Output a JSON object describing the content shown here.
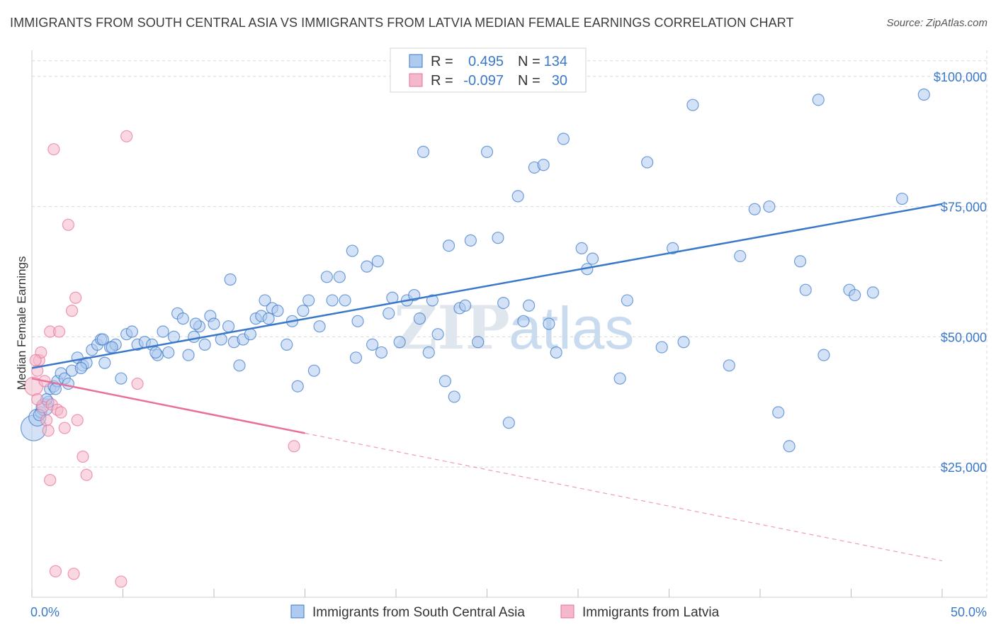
{
  "title": "IMMIGRANTS FROM SOUTH CENTRAL ASIA VS IMMIGRANTS FROM LATVIA MEDIAN FEMALE EARNINGS CORRELATION CHART",
  "source": "Source: ZipAtlas.com",
  "watermark": {
    "zip": "ZIP",
    "atlas": "atlas"
  },
  "colors": {
    "blue": "#3a78c9",
    "blue_fill": "#aecbef",
    "pink": "#e8709a",
    "pink_fill": "#f4b8cb",
    "grid": "#d8d8d8"
  },
  "legend": {
    "rows": [
      {
        "r_label": "R =",
        "r_value": "0.495",
        "n_label": "N =",
        "n_value": "134"
      },
      {
        "r_label": "R =",
        "r_value": "-0.097",
        "n_label": "N =",
        "n_value": "30"
      }
    ]
  },
  "chart_data": {
    "type": "scatter",
    "ylabel": "Median Female Earnings",
    "xlim": [
      0,
      50
    ],
    "ylim": [
      0,
      105000
    ],
    "x_tick_labels": [
      "0.0%",
      "50.0%"
    ],
    "y_ticks": [
      25000,
      50000,
      75000,
      100000
    ],
    "y_tick_labels": [
      "$25,000",
      "$50,000",
      "$75,000",
      "$100,000"
    ],
    "grid": true,
    "series": [
      {
        "name": "Immigrants from South Central Asia",
        "color": "#3a78c9",
        "trend": {
          "x": [
            0,
            50
          ],
          "y": [
            44000,
            75500
          ],
          "style": "solid"
        },
        "points": [
          [
            0.1,
            32500
          ],
          [
            0.3,
            34500
          ],
          [
            0.5,
            35500
          ],
          [
            0.7,
            36500
          ],
          [
            0.9,
            37500
          ],
          [
            1.0,
            40000
          ],
          [
            1.2,
            40500
          ],
          [
            1.4,
            41500
          ],
          [
            1.6,
            43000
          ],
          [
            1.8,
            42000
          ],
          [
            2.0,
            41000
          ],
          [
            2.2,
            43500
          ],
          [
            2.5,
            46000
          ],
          [
            2.8,
            44500
          ],
          [
            3.0,
            45000
          ],
          [
            3.3,
            47500
          ],
          [
            3.6,
            48500
          ],
          [
            3.8,
            49500
          ],
          [
            4.0,
            45000
          ],
          [
            4.3,
            48000
          ],
          [
            4.6,
            48500
          ],
          [
            4.9,
            42000
          ],
          [
            5.2,
            50500
          ],
          [
            5.5,
            51000
          ],
          [
            5.8,
            48500
          ],
          [
            6.2,
            49000
          ],
          [
            6.6,
            48500
          ],
          [
            6.9,
            46500
          ],
          [
            7.2,
            51000
          ],
          [
            7.5,
            47000
          ],
          [
            7.8,
            50000
          ],
          [
            8.0,
            54500
          ],
          [
            8.3,
            53500
          ],
          [
            8.6,
            46500
          ],
          [
            8.9,
            50000
          ],
          [
            9.2,
            52000
          ],
          [
            9.5,
            48500
          ],
          [
            9.8,
            54000
          ],
          [
            10.0,
            52500
          ],
          [
            10.4,
            49500
          ],
          [
            10.8,
            52000
          ],
          [
            10.9,
            61000
          ],
          [
            11.1,
            49000
          ],
          [
            11.4,
            44500
          ],
          [
            11.6,
            49500
          ],
          [
            12.0,
            50500
          ],
          [
            12.3,
            53500
          ],
          [
            12.6,
            54000
          ],
          [
            12.8,
            57000
          ],
          [
            13.2,
            55500
          ],
          [
            13.5,
            55000
          ],
          [
            13.0,
            53500
          ],
          [
            14.0,
            48500
          ],
          [
            14.3,
            53000
          ],
          [
            14.6,
            40500
          ],
          [
            14.9,
            55000
          ],
          [
            15.2,
            57000
          ],
          [
            15.5,
            43500
          ],
          [
            15.8,
            52000
          ],
          [
            16.2,
            61500
          ],
          [
            16.5,
            57000
          ],
          [
            16.9,
            61500
          ],
          [
            17.2,
            57000
          ],
          [
            17.6,
            66500
          ],
          [
            17.9,
            53000
          ],
          [
            17.8,
            46000
          ],
          [
            18.4,
            63500
          ],
          [
            18.7,
            48500
          ],
          [
            19.0,
            64500
          ],
          [
            19.2,
            47000
          ],
          [
            19.6,
            54500
          ],
          [
            19.8,
            57500
          ],
          [
            20.2,
            49000
          ],
          [
            20.6,
            57000
          ],
          [
            21.0,
            58000
          ],
          [
            21.3,
            53500
          ],
          [
            21.5,
            85500
          ],
          [
            21.8,
            47000
          ],
          [
            22.0,
            57000
          ],
          [
            22.3,
            50500
          ],
          [
            22.7,
            41500
          ],
          [
            22.9,
            67500
          ],
          [
            23.2,
            38500
          ],
          [
            23.5,
            55500
          ],
          [
            23.8,
            56000
          ],
          [
            24.1,
            68500
          ],
          [
            24.5,
            49000
          ],
          [
            25.0,
            85500
          ],
          [
            25.6,
            69000
          ],
          [
            25.9,
            56500
          ],
          [
            26.2,
            33500
          ],
          [
            26.7,
            77000
          ],
          [
            27.0,
            53000
          ],
          [
            27.3,
            56000
          ],
          [
            27.6,
            82500
          ],
          [
            28.1,
            83000
          ],
          [
            28.4,
            52500
          ],
          [
            28.8,
            47000
          ],
          [
            29.2,
            88000
          ],
          [
            30.2,
            67000
          ],
          [
            30.5,
            63000
          ],
          [
            30.8,
            65000
          ],
          [
            32.3,
            42000
          ],
          [
            32.7,
            57000
          ],
          [
            33.8,
            83500
          ],
          [
            34.6,
            48000
          ],
          [
            35.2,
            67000
          ],
          [
            35.8,
            49000
          ],
          [
            36.3,
            94500
          ],
          [
            38.3,
            44500
          ],
          [
            38.9,
            65500
          ],
          [
            39.7,
            74500
          ],
          [
            40.5,
            75000
          ],
          [
            41.0,
            35500
          ],
          [
            41.6,
            29000
          ],
          [
            42.2,
            64500
          ],
          [
            42.5,
            59000
          ],
          [
            43.2,
            95500
          ],
          [
            43.5,
            46500
          ],
          [
            44.9,
            59000
          ],
          [
            45.2,
            58000
          ],
          [
            46.2,
            58500
          ],
          [
            47.8,
            76500
          ],
          [
            49.0,
            96500
          ],
          [
            0.4,
            35000
          ],
          [
            0.8,
            38000
          ],
          [
            1.3,
            40000
          ],
          [
            2.7,
            44000
          ],
          [
            3.9,
            49500
          ],
          [
            4.4,
            48000
          ],
          [
            6.8,
            47000
          ],
          [
            9.0,
            52500
          ]
        ]
      },
      {
        "name": "Immigrants from Latvia",
        "color": "#e8709a",
        "trend": {
          "x": [
            0,
            15
          ],
          "y": [
            42000,
            31500
          ],
          "style": "solid",
          "extended": {
            "x": [
              15,
              50
            ],
            "y": [
              31500,
              7000
            ],
            "style": "dashed"
          }
        },
        "points": [
          [
            0.1,
            40500
          ],
          [
            0.3,
            43500
          ],
          [
            0.4,
            45500
          ],
          [
            0.5,
            47000
          ],
          [
            0.6,
            36500
          ],
          [
            0.7,
            41500
          ],
          [
            0.8,
            34000
          ],
          [
            0.9,
            32000
          ],
          [
            1.0,
            51000
          ],
          [
            1.1,
            37000
          ],
          [
            1.2,
            86000
          ],
          [
            1.4,
            36000
          ],
          [
            1.5,
            51000
          ],
          [
            1.6,
            35500
          ],
          [
            1.8,
            32500
          ],
          [
            2.0,
            71500
          ],
          [
            2.2,
            55000
          ],
          [
            2.4,
            57500
          ],
          [
            2.5,
            34000
          ],
          [
            2.8,
            27000
          ],
          [
            3.0,
            23500
          ],
          [
            1.0,
            22500
          ],
          [
            1.3,
            5000
          ],
          [
            2.3,
            4500
          ],
          [
            5.2,
            88500
          ],
          [
            5.8,
            41000
          ],
          [
            14.4,
            29000
          ],
          [
            0.2,
            45500
          ],
          [
            4.9,
            3000
          ],
          [
            0.3,
            38000
          ]
        ]
      }
    ],
    "bottom_legend": [
      "Immigrants from South Central Asia",
      "Immigrants from Latvia"
    ]
  }
}
